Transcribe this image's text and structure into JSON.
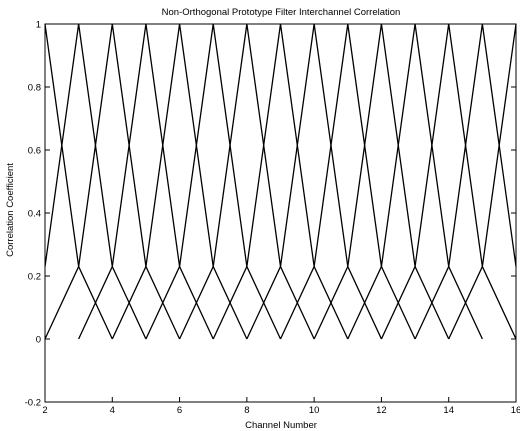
{
  "chart_data": {
    "type": "line",
    "title": "Non-Orthogonal Prototype Filter Interchannel Correlation",
    "xlabel": "Channel Number",
    "ylabel": "Correlation Coefficient",
    "xlim": [
      2,
      16
    ],
    "ylim": [
      -0.2,
      1
    ],
    "xticks": [
      2,
      4,
      6,
      8,
      10,
      12,
      14,
      16
    ],
    "yticks": [
      -0.2,
      0,
      0.2,
      0.4,
      0.6,
      0.8,
      1
    ],
    "grid": false,
    "legend": "none",
    "line_color": "#000000",
    "series": [
      {
        "x": [
          2,
          3,
          4
        ],
        "y": [
          1,
          0.23,
          0
        ]
      },
      {
        "x": [
          2,
          3,
          4,
          5
        ],
        "y": [
          0.23,
          1,
          0.23,
          0
        ]
      },
      {
        "x": [
          2,
          3,
          4,
          5,
          6
        ],
        "y": [
          0,
          0.23,
          1,
          0.23,
          0
        ]
      },
      {
        "x": [
          3,
          4,
          5,
          6,
          7
        ],
        "y": [
          0,
          0.23,
          1,
          0.23,
          0
        ]
      },
      {
        "x": [
          4,
          5,
          6,
          7,
          8
        ],
        "y": [
          0,
          0.23,
          1,
          0.23,
          0
        ]
      },
      {
        "x": [
          5,
          6,
          7,
          8,
          9
        ],
        "y": [
          0,
          0.23,
          1,
          0.23,
          0
        ]
      },
      {
        "x": [
          6,
          7,
          8,
          9,
          10
        ],
        "y": [
          0,
          0.23,
          1,
          0.23,
          0
        ]
      },
      {
        "x": [
          7,
          8,
          9,
          10,
          11
        ],
        "y": [
          0,
          0.23,
          1,
          0.23,
          0
        ]
      },
      {
        "x": [
          8,
          9,
          10,
          11,
          12
        ],
        "y": [
          0,
          0.23,
          1,
          0.23,
          0
        ]
      },
      {
        "x": [
          9,
          10,
          11,
          12,
          13
        ],
        "y": [
          0,
          0.23,
          1,
          0.23,
          0
        ]
      },
      {
        "x": [
          10,
          11,
          12,
          13,
          14
        ],
        "y": [
          0,
          0.23,
          1,
          0.23,
          0
        ]
      },
      {
        "x": [
          11,
          12,
          13,
          14,
          15
        ],
        "y": [
          0,
          0.23,
          1,
          0.23,
          0
        ]
      },
      {
        "x": [
          12,
          13,
          14,
          15,
          16
        ],
        "y": [
          0,
          0.23,
          1,
          0.23,
          0
        ]
      },
      {
        "x": [
          13,
          14,
          15,
          16
        ],
        "y": [
          0,
          0.23,
          1,
          0.23
        ]
      },
      {
        "x": [
          14,
          15,
          16
        ],
        "y": [
          0,
          0.23,
          1
        ]
      }
    ]
  }
}
